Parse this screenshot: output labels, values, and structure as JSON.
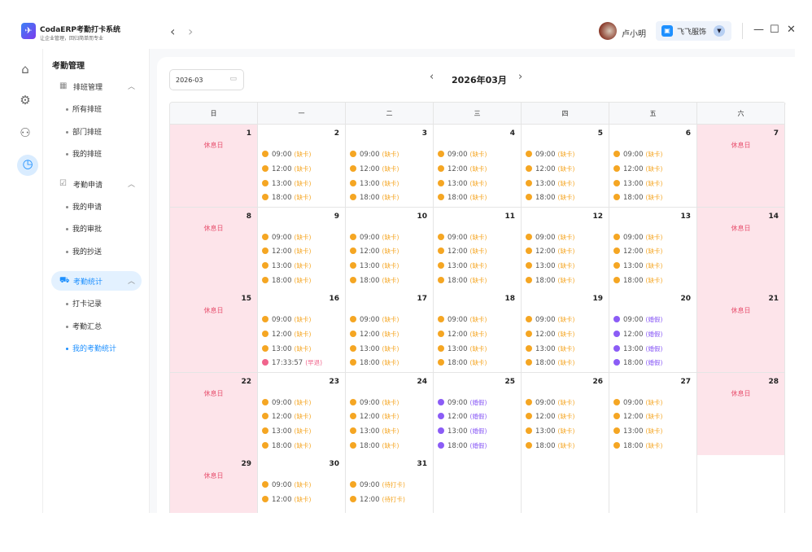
{
  "app": {
    "title": "CodaERP考勤打卡系统",
    "subtitle": "让企业管理，回归简单而专业"
  },
  "header": {
    "user": "卢小明",
    "org": "飞飞服饰",
    "back": "‹",
    "forward": "›",
    "minimize": "—",
    "maximize": "☐",
    "close": "✕"
  },
  "rail": [
    {
      "icon": "home-icon",
      "glyph": "⌂"
    },
    {
      "icon": "gear-icon",
      "glyph": "⚙"
    },
    {
      "icon": "user-list-icon",
      "glyph": "⚇"
    },
    {
      "icon": "clock-icon",
      "glyph": "◷"
    }
  ],
  "sidebar": {
    "title": "考勤管理",
    "groups": [
      {
        "label": "排班管理",
        "icon": "calendar-icon",
        "glyph": "▦",
        "items": [
          "所有排班",
          "部门排班",
          "我的排班"
        ]
      },
      {
        "label": "考勤申请",
        "icon": "clipboard-icon",
        "glyph": "☑",
        "items": [
          "我的申请",
          "我的审批",
          "我的抄送"
        ]
      },
      {
        "label": "考勤统计",
        "icon": "cart-icon",
        "glyph": "⛟",
        "items": [
          "打卡记录",
          "考勤汇总",
          "我的考勤统计"
        ]
      }
    ],
    "active_group": 2,
    "active_item": "我的考勤统计"
  },
  "calendar": {
    "date_value": "2026-03",
    "month_label": "2026年03月",
    "prev": "‹",
    "next": "›",
    "weekdays": [
      "日",
      "一",
      "二",
      "三",
      "四",
      "五",
      "六"
    ],
    "rest_label": "休息日",
    "colors": {
      "missing": "#f5a623",
      "early": "#f0648c",
      "leave": "#8b5cf6"
    },
    "weeks": [
      [
        {
          "d": "1",
          "rest": true
        },
        {
          "d": "2",
          "e": [
            [
              "09:00",
              "缺卡",
              "missing"
            ],
            [
              "12:00",
              "缺卡",
              "missing"
            ],
            [
              "13:00",
              "缺卡",
              "missing"
            ],
            [
              "18:00",
              "缺卡",
              "missing"
            ]
          ]
        },
        {
          "d": "3",
          "e": [
            [
              "09:00",
              "缺卡",
              "missing"
            ],
            [
              "12:00",
              "缺卡",
              "missing"
            ],
            [
              "13:00",
              "缺卡",
              "missing"
            ],
            [
              "18:00",
              "缺卡",
              "missing"
            ]
          ]
        },
        {
          "d": "4",
          "e": [
            [
              "09:00",
              "缺卡",
              "missing"
            ],
            [
              "12:00",
              "缺卡",
              "missing"
            ],
            [
              "13:00",
              "缺卡",
              "missing"
            ],
            [
              "18:00",
              "缺卡",
              "missing"
            ]
          ]
        },
        {
          "d": "5",
          "e": [
            [
              "09:00",
              "缺卡",
              "missing"
            ],
            [
              "12:00",
              "缺卡",
              "missing"
            ],
            [
              "13:00",
              "缺卡",
              "missing"
            ],
            [
              "18:00",
              "缺卡",
              "missing"
            ]
          ]
        },
        {
          "d": "6",
          "e": [
            [
              "09:00",
              "缺卡",
              "missing"
            ],
            [
              "12:00",
              "缺卡",
              "missing"
            ],
            [
              "13:00",
              "缺卡",
              "missing"
            ],
            [
              "18:00",
              "缺卡",
              "missing"
            ]
          ]
        },
        {
          "d": "7",
          "rest": true
        }
      ],
      [
        {
          "d": "8",
          "rest": true
        },
        {
          "d": "9",
          "e": [
            [
              "09:00",
              "缺卡",
              "missing"
            ],
            [
              "12:00",
              "缺卡",
              "missing"
            ],
            [
              "13:00",
              "缺卡",
              "missing"
            ],
            [
              "18:00",
              "缺卡",
              "missing"
            ]
          ]
        },
        {
          "d": "10",
          "e": [
            [
              "09:00",
              "缺卡",
              "missing"
            ],
            [
              "12:00",
              "缺卡",
              "missing"
            ],
            [
              "13:00",
              "缺卡",
              "missing"
            ],
            [
              "18:00",
              "缺卡",
              "missing"
            ]
          ]
        },
        {
          "d": "11",
          "e": [
            [
              "09:00",
              "缺卡",
              "missing"
            ],
            [
              "12:00",
              "缺卡",
              "missing"
            ],
            [
              "13:00",
              "缺卡",
              "missing"
            ],
            [
              "18:00",
              "缺卡",
              "missing"
            ]
          ]
        },
        {
          "d": "12",
          "e": [
            [
              "09:00",
              "缺卡",
              "missing"
            ],
            [
              "12:00",
              "缺卡",
              "missing"
            ],
            [
              "13:00",
              "缺卡",
              "missing"
            ],
            [
              "18:00",
              "缺卡",
              "missing"
            ]
          ]
        },
        {
          "d": "13",
          "e": [
            [
              "09:00",
              "缺卡",
              "missing"
            ],
            [
              "12:00",
              "缺卡",
              "missing"
            ],
            [
              "13:00",
              "缺卡",
              "missing"
            ],
            [
              "18:00",
              "缺卡",
              "missing"
            ]
          ]
        },
        {
          "d": "14",
          "rest": true
        }
      ],
      [
        {
          "d": "15",
          "rest": true
        },
        {
          "d": "16",
          "e": [
            [
              "09:00",
              "缺卡",
              "missing"
            ],
            [
              "12:00",
              "缺卡",
              "missing"
            ],
            [
              "13:00",
              "缺卡",
              "missing"
            ],
            [
              "17:33:57",
              "早退",
              "early"
            ]
          ]
        },
        {
          "d": "17",
          "e": [
            [
              "09:00",
              "缺卡",
              "missing"
            ],
            [
              "12:00",
              "缺卡",
              "missing"
            ],
            [
              "13:00",
              "缺卡",
              "missing"
            ],
            [
              "18:00",
              "缺卡",
              "missing"
            ]
          ]
        },
        {
          "d": "18",
          "e": [
            [
              "09:00",
              "缺卡",
              "missing"
            ],
            [
              "12:00",
              "缺卡",
              "missing"
            ],
            [
              "13:00",
              "缺卡",
              "missing"
            ],
            [
              "18:00",
              "缺卡",
              "missing"
            ]
          ]
        },
        {
          "d": "19",
          "e": [
            [
              "09:00",
              "缺卡",
              "missing"
            ],
            [
              "12:00",
              "缺卡",
              "missing"
            ],
            [
              "13:00",
              "缺卡",
              "missing"
            ],
            [
              "18:00",
              "缺卡",
              "missing"
            ]
          ]
        },
        {
          "d": "20",
          "e": [
            [
              "09:00",
              "婚假",
              "leave"
            ],
            [
              "12:00",
              "婚假",
              "leave"
            ],
            [
              "13:00",
              "婚假",
              "leave"
            ],
            [
              "18:00",
              "婚假",
              "leave"
            ]
          ]
        },
        {
          "d": "21",
          "rest": true
        }
      ],
      [
        {
          "d": "22",
          "rest": true
        },
        {
          "d": "23",
          "e": [
            [
              "09:00",
              "缺卡",
              "missing"
            ],
            [
              "12:00",
              "缺卡",
              "missing"
            ],
            [
              "13:00",
              "缺卡",
              "missing"
            ],
            [
              "18:00",
              "缺卡",
              "missing"
            ]
          ]
        },
        {
          "d": "24",
          "e": [
            [
              "09:00",
              "缺卡",
              "missing"
            ],
            [
              "12:00",
              "缺卡",
              "missing"
            ],
            [
              "13:00",
              "缺卡",
              "missing"
            ],
            [
              "18:00",
              "缺卡",
              "missing"
            ]
          ]
        },
        {
          "d": "25",
          "e": [
            [
              "09:00",
              "婚假",
              "leave"
            ],
            [
              "12:00",
              "婚假",
              "leave"
            ],
            [
              "13:00",
              "婚假",
              "leave"
            ],
            [
              "18:00",
              "婚假",
              "leave"
            ]
          ]
        },
        {
          "d": "26",
          "e": [
            [
              "09:00",
              "缺卡",
              "missing"
            ],
            [
              "12:00",
              "缺卡",
              "missing"
            ],
            [
              "13:00",
              "缺卡",
              "missing"
            ],
            [
              "18:00",
              "缺卡",
              "missing"
            ]
          ]
        },
        {
          "d": "27",
          "e": [
            [
              "09:00",
              "缺卡",
              "missing"
            ],
            [
              "12:00",
              "缺卡",
              "missing"
            ],
            [
              "13:00",
              "缺卡",
              "missing"
            ],
            [
              "18:00",
              "缺卡",
              "missing"
            ]
          ]
        },
        {
          "d": "28",
          "rest": true
        }
      ],
      [
        {
          "d": "29",
          "rest": true
        },
        {
          "d": "30",
          "e": [
            [
              "09:00",
              "缺卡",
              "missing"
            ],
            [
              "12:00",
              "缺卡",
              "missing"
            ]
          ]
        },
        {
          "d": "31",
          "e": [
            [
              "09:00",
              "待打卡",
              "missing"
            ],
            [
              "12:00",
              "待打卡",
              "missing"
            ]
          ]
        },
        {
          "d": ""
        },
        {
          "d": ""
        },
        {
          "d": ""
        },
        {
          "d": ""
        }
      ]
    ]
  }
}
